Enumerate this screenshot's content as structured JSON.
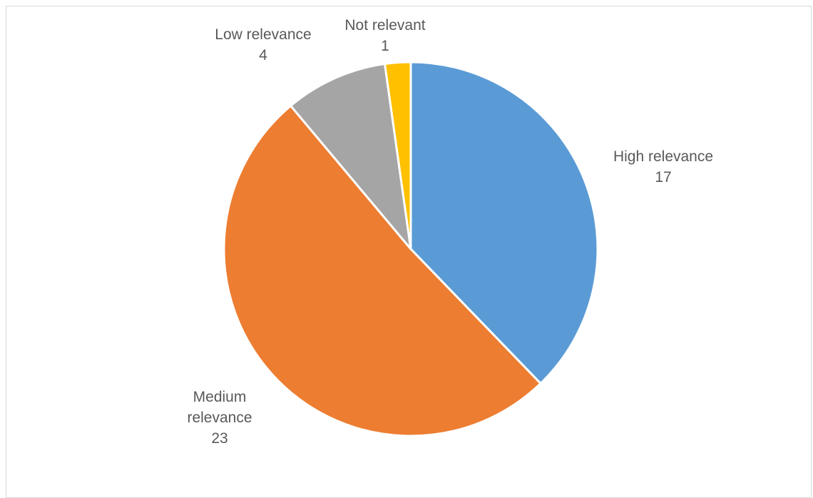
{
  "chart_data": {
    "type": "pie",
    "title": "",
    "start_angle_deg": 0,
    "direction": "clockwise",
    "slices": [
      {
        "name": "High relevance",
        "value": 17,
        "label_lines": [
          "High relevance",
          "17"
        ],
        "color": "#5B9BD5"
      },
      {
        "name": "Medium relevance",
        "value": 23,
        "label_lines": [
          "Medium",
          "relevance",
          "23"
        ],
        "color": "#ED7D31"
      },
      {
        "name": "Low relevance",
        "value": 4,
        "label_lines": [
          "Low relevance",
          "4"
        ],
        "color": "#A5A5A5"
      },
      {
        "name": "Not relevant",
        "value": 1,
        "label_lines": [
          "Not relevant",
          "1"
        ],
        "color": "#FFC000"
      }
    ],
    "legend": "none",
    "data_labels": "outside"
  }
}
